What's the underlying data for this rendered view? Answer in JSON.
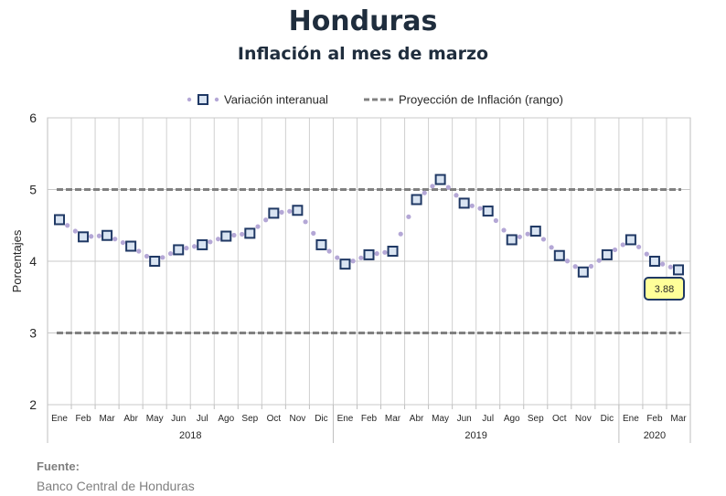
{
  "header": {
    "title": "Honduras",
    "subtitle": "Inflación al mes de marzo"
  },
  "footer": {
    "source_label": "Fuente:",
    "source_name": "Banco Central de Honduras"
  },
  "colors": {
    "dots": "#b4a7d6",
    "markers_border": "#1f3864",
    "projection": "#808080",
    "grid": "#c8c8c8",
    "callout_fill": "#ffff99"
  },
  "chart_data": {
    "type": "line",
    "title": "Honduras",
    "subtitle": "Inflación al mes de marzo",
    "xlabel": "",
    "ylabel": "Porcentajes",
    "ylim": [
      2,
      6
    ],
    "yticks": [
      "2",
      "3",
      "4",
      "5",
      "6"
    ],
    "grid": true,
    "legend_position": "top",
    "months": [
      "Ene",
      "Feb",
      "Mar",
      "Abr",
      "May",
      "Jun",
      "Jul",
      "Ago",
      "Sep",
      "Oct",
      "Nov",
      "Dic",
      "Ene",
      "Feb",
      "Mar",
      "Abr",
      "May",
      "Jun",
      "Jul",
      "Ago",
      "Sep",
      "Oct",
      "Nov",
      "Dic",
      "Ene",
      "Feb",
      "Mar"
    ],
    "years": [
      {
        "label": "2018",
        "count": 12
      },
      {
        "label": "2019",
        "count": 12
      },
      {
        "label": "2020",
        "count": 3
      }
    ],
    "series": [
      {
        "name": "Variación interanual",
        "style": "dotted-markers",
        "values": [
          4.58,
          4.34,
          4.36,
          4.21,
          4.0,
          4.16,
          4.23,
          4.35,
          4.39,
          4.67,
          4.71,
          4.23,
          3.96,
          4.09,
          4.14,
          4.86,
          5.14,
          4.81,
          4.7,
          4.3,
          4.42,
          4.08,
          3.85,
          4.09,
          4.3,
          4.0,
          3.88
        ]
      },
      {
        "name": "Proyección de Inflación (rango)",
        "style": "dashed",
        "upper": 5.0,
        "lower": 3.0
      }
    ],
    "annotation": "3.88"
  }
}
